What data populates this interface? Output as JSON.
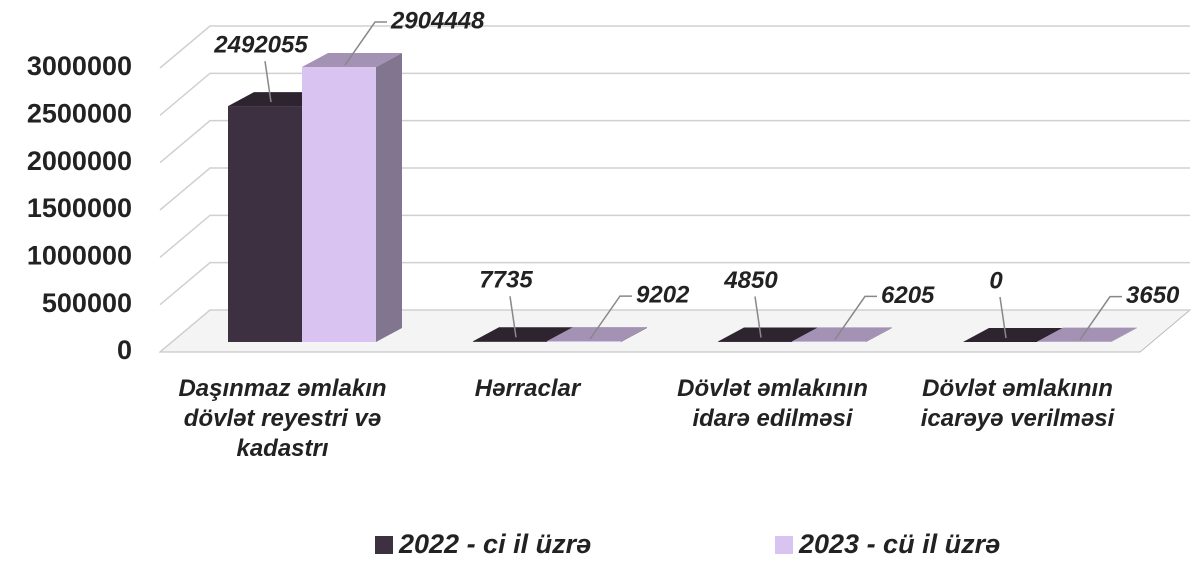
{
  "chart_data": {
    "type": "bar3d",
    "categories": [
      "Daşınmaz əmlakın dövlət reyestri və kadastrı",
      "Hərraclar",
      "Dövlət əmlakının idarə edilməsi",
      "Dövlət əmlakının icarəyə verilməsi"
    ],
    "series": [
      {
        "name": "2022 - ci il üzrə",
        "color": "#3d3040",
        "values": [
          2492055,
          7735,
          4850,
          0
        ]
      },
      {
        "name": "2023 - cü il üzrə",
        "color": "#d9c3f0",
        "values": [
          2904448,
          9202,
          6205,
          3650
        ]
      }
    ],
    "ylim": [
      0,
      3000000
    ],
    "yticks": [
      0,
      500000,
      1000000,
      1500000,
      2000000,
      2500000,
      3000000
    ],
    "grid": true,
    "legend": "bottom"
  }
}
